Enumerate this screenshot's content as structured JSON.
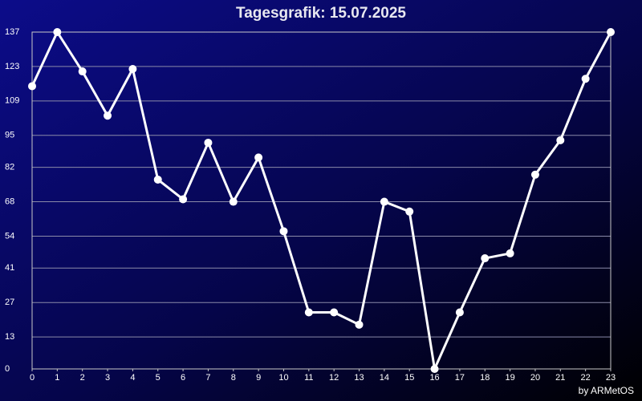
{
  "chart_data": {
    "type": "line",
    "title": "Tagesgrafik: 15.07.2025",
    "credit": "by ARMetOS",
    "x": [
      0,
      1,
      2,
      3,
      4,
      5,
      6,
      7,
      8,
      9,
      10,
      11,
      12,
      13,
      14,
      15,
      16,
      17,
      18,
      19,
      20,
      21,
      22,
      23
    ],
    "series": [
      {
        "color": "#ffffff",
        "values": [
          115,
          137,
          121,
          103,
          122,
          77,
          69,
          92,
          68,
          86,
          56,
          23,
          23,
          18,
          68,
          64,
          0,
          23,
          45,
          47,
          79,
          93,
          118,
          137
        ]
      }
    ],
    "xlim": [
      0,
      23
    ],
    "xticks": [
      0,
      1,
      2,
      3,
      4,
      5,
      6,
      7,
      8,
      9,
      10,
      11,
      12,
      13,
      14,
      15,
      16,
      17,
      18,
      19,
      20,
      21,
      22,
      23
    ],
    "ylim": [
      0,
      137
    ],
    "yticks": [
      0,
      13,
      27,
      41,
      54,
      68,
      82,
      95,
      109,
      123,
      137
    ],
    "grid": true
  }
}
